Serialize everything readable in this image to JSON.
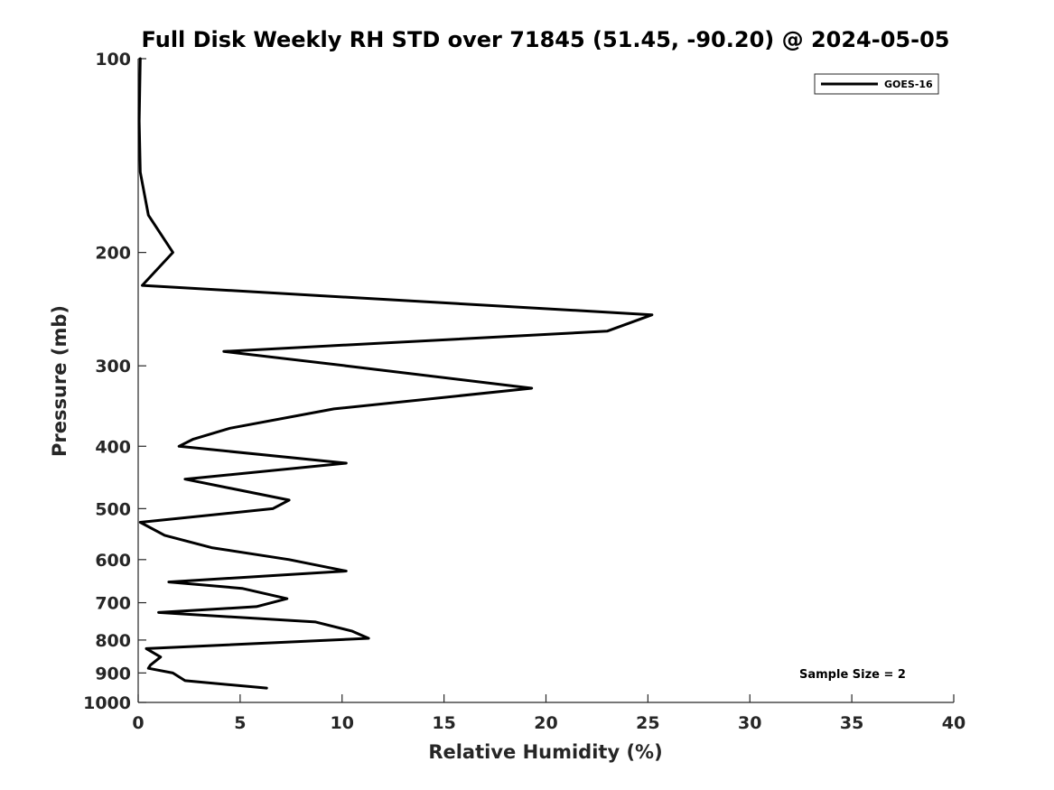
{
  "chart_data": {
    "type": "line",
    "title": "Full Disk Weekly RH STD over 71845 (51.45, -90.20) @ 2024-05-05",
    "xlabel": "Relative Humidity (%)",
    "ylabel": "Pressure (mb)",
    "xlim": [
      0,
      40
    ],
    "ylim": [
      100,
      1000
    ],
    "y_scale": "log",
    "y_reversed": true,
    "x_ticks": [
      "0",
      "5",
      "10",
      "15",
      "20",
      "25",
      "30",
      "35",
      "40"
    ],
    "y_ticks": [
      "100",
      "200",
      "300",
      "400",
      "500",
      "600",
      "700",
      "800",
      "900",
      "1000"
    ],
    "grid": false,
    "legend_position": "top-right",
    "annotation": "Sample Size = 2",
    "series": [
      {
        "name": "GOES-16",
        "color": "#000000",
        "x": [
          0.1,
          0.05,
          0.1,
          0.5,
          1.7,
          0.2,
          25.2,
          23.0,
          4.2,
          10.2,
          19.3,
          9.6,
          4.5,
          2.7,
          2.0,
          10.2,
          2.3,
          7.4,
          6.6,
          0.1,
          1.3,
          3.6,
          7.4,
          10.2,
          1.5,
          5.1,
          7.3,
          5.8,
          1.0,
          8.7,
          10.5,
          11.3,
          0.4,
          1.1,
          0.6,
          0.5,
          1.7,
          2.3,
          6.3
        ],
        "y": [
          100,
          125,
          150,
          175,
          200,
          225,
          250,
          265,
          285,
          300,
          325,
          350,
          375,
          390,
          400,
          425,
          450,
          485,
          500,
          525,
          550,
          575,
          600,
          625,
          650,
          665,
          690,
          710,
          725,
          750,
          775,
          795,
          825,
          850,
          875,
          885,
          900,
          925,
          950
        ]
      }
    ]
  }
}
